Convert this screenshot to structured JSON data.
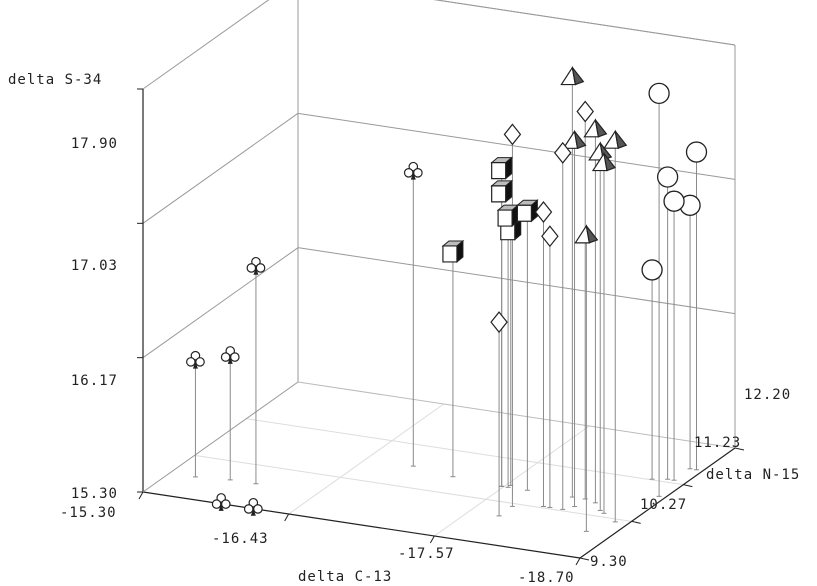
{
  "chart_data": {
    "type": "scatter3d",
    "title": "",
    "x_axis": {
      "label": "delta C-13",
      "ticks": [
        "-15.30",
        "-16.43",
        "-17.57",
        "-18.70"
      ],
      "range": [
        -15.3,
        -18.7
      ]
    },
    "y_axis": {
      "label": "delta N-15",
      "ticks": [
        "9.30",
        "10.27",
        "11.23",
        "12.20"
      ],
      "range": [
        9.3,
        12.2
      ]
    },
    "z_axis": {
      "label": "delta S-34",
      "ticks": [
        "15.30",
        "16.17",
        "17.03",
        "17.90"
      ],
      "range": [
        15.3,
        17.9
      ]
    },
    "grid": true,
    "drop_lines": true,
    "colors": {
      "axis": "#222222",
      "grid": "#999999",
      "drop_line": "#8a8a8a",
      "marker_fill": "#ffffff",
      "marker_stroke": "#222222",
      "marker_shade": "#555555"
    },
    "series": [
      {
        "marker": "club",
        "points": [
          {
            "x": -15.5,
            "y": 9.8,
            "z": 16.05
          },
          {
            "x": -15.75,
            "y": 9.85,
            "z": 16.1
          },
          {
            "x": -15.95,
            "y": 9.85,
            "z": 16.7
          },
          {
            "x": -15.9,
            "y": 9.32,
            "z": 15.3
          },
          {
            "x": -16.15,
            "y": 9.32,
            "z": 15.3
          },
          {
            "x": -16.8,
            "y": 10.75,
            "z": 17.2
          }
        ]
      },
      {
        "marker": "cube",
        "points": [
          {
            "x": -17.15,
            "y": 10.65,
            "z": 16.75
          },
          {
            "x": -17.55,
            "y": 10.6,
            "z": 17.35
          },
          {
            "x": -17.55,
            "y": 10.6,
            "z": 17.2
          },
          {
            "x": -17.6,
            "y": 10.6,
            "z": 17.05
          },
          {
            "x": -17.6,
            "y": 10.65,
            "z": 16.95
          },
          {
            "x": -17.75,
            "y": 10.6,
            "z": 17.1
          }
        ]
      },
      {
        "marker": "diamond",
        "points": [
          {
            "x": -17.8,
            "y": 9.95,
            "z": 16.55
          },
          {
            "x": -17.8,
            "y": 10.2,
            "z": 17.7
          },
          {
            "x": -18.0,
            "y": 10.3,
            "z": 17.2
          },
          {
            "x": -18.05,
            "y": 10.3,
            "z": 17.05
          },
          {
            "x": -18.2,
            "y": 10.6,
            "z": 17.8
          },
          {
            "x": -18.15,
            "y": 10.3,
            "z": 17.6
          }
        ]
      },
      {
        "marker": "tetrahedron",
        "points": [
          {
            "x": -18.1,
            "y": 10.6,
            "z": 18.0
          },
          {
            "x": -18.2,
            "y": 10.4,
            "z": 17.65
          },
          {
            "x": -18.3,
            "y": 10.55,
            "z": 17.7
          },
          {
            "x": -18.4,
            "y": 10.4,
            "z": 17.6
          },
          {
            "x": -18.45,
            "y": 10.35,
            "z": 17.55
          },
          {
            "x": -18.6,
            "y": 10.2,
            "z": 17.75
          },
          {
            "x": -18.5,
            "y": 9.9,
            "z": 17.2
          }
        ]
      },
      {
        "marker": "sphere",
        "points": [
          {
            "x": -18.65,
            "y": 10.9,
            "z": 17.9
          },
          {
            "x": -18.65,
            "y": 11.6,
            "z": 17.35
          },
          {
            "x": -18.55,
            "y": 11.3,
            "z": 17.25
          },
          {
            "x": -18.6,
            "y": 11.3,
            "z": 17.1
          },
          {
            "x": -18.6,
            "y": 11.6,
            "z": 17.0
          },
          {
            "x": -18.45,
            "y": 11.25,
            "z": 16.65
          }
        ]
      }
    ]
  }
}
